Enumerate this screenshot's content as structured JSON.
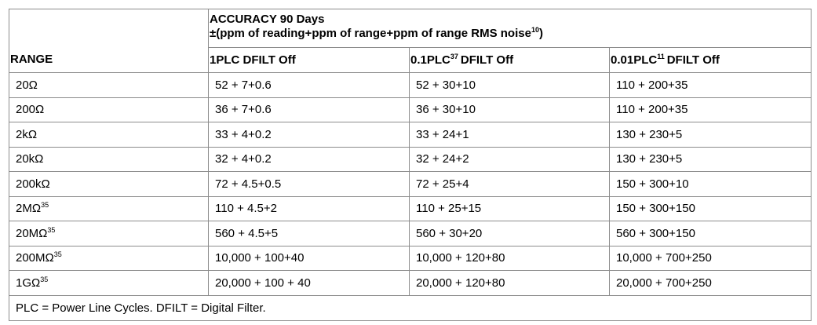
{
  "table": {
    "range_header": "RANGE",
    "accuracy_header": {
      "title": "ACCURACY 90 Days",
      "subtitle": "±(ppm of reading+ppm of range+ppm of range RMS noise",
      "subtitle_sup": "10",
      "subtitle_end": ")"
    },
    "columns": [
      {
        "pre": "1PLC",
        "sup": "",
        "post": " DFILT Off"
      },
      {
        "pre": "0.1PLC",
        "sup": "37",
        "post": "DFILT Off"
      },
      {
        "pre": "0.01PLC",
        "sup": "11",
        "post": "DFILT Off"
      }
    ],
    "rows": [
      {
        "range": "20Ω",
        "sup": "",
        "v1": "52 + 7+0.6",
        "v2": "52 + 30+10",
        "v3": "110 + 200+35"
      },
      {
        "range": "200Ω",
        "sup": "",
        "v1": "36 + 7+0.6",
        "v2": "36 + 30+10",
        "v3": "110 + 200+35"
      },
      {
        "range": "2kΩ",
        "sup": "",
        "v1": "33 + 4+0.2",
        "v2": "33 + 24+1",
        "v3": "130 + 230+5"
      },
      {
        "range": "20kΩ",
        "sup": "",
        "v1": "32 + 4+0.2",
        "v2": "32 + 24+2",
        "v3": "130 + 230+5"
      },
      {
        "range": "200kΩ",
        "sup": "",
        "v1": "72 + 4.5+0.5",
        "v2": "72 + 25+4",
        "v3": "150 + 300+10"
      },
      {
        "range": "2MΩ",
        "sup": "35",
        "v1": "110 + 4.5+2",
        "v2": "110 + 25+15",
        "v3": "150 + 300+150"
      },
      {
        "range": "20MΩ",
        "sup": "35",
        "v1": "560 + 4.5+5",
        "v2": "560 + 30+20",
        "v3": "560 + 300+150"
      },
      {
        "range": "200MΩ",
        "sup": "35",
        "v1": "10,000 + 100+40",
        "v2": "10,000 + 120+80",
        "v3": "10,000 + 700+250"
      },
      {
        "range": "1GΩ",
        "sup": "35",
        "v1": "20,000 + 100 + 40",
        "v2": "20,000 + 120+80",
        "v3": "20,000 + 700+250"
      }
    ],
    "footnote": "PLC = Power Line Cycles. DFILT = Digital Filter."
  }
}
